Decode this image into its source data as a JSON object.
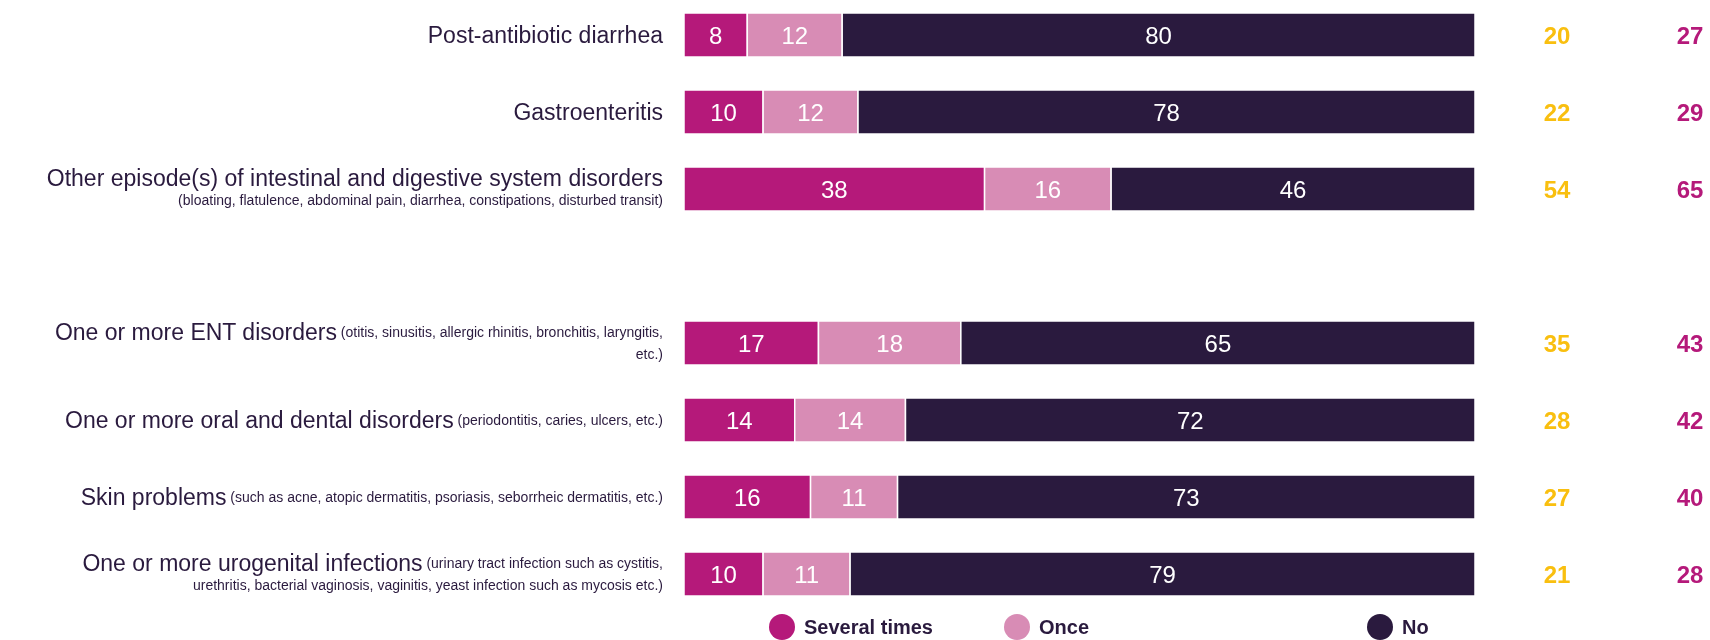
{
  "chart_data": {
    "type": "bar",
    "orientation": "horizontal",
    "stacked": true,
    "data_labels": true,
    "tick_labels": "y",
    "legend": "bottom",
    "categories": [
      "Post-antibiotic diarrhea",
      "Gastroenteritis",
      "Other episode(s) of intestinal and digestive system disorders (bloating, flatulence, abdominal pain, diarrhea, constipations, disturbed transit)",
      null,
      "One or more ENT disorders (otitis, sinusitis, allergic rhinitis, bronchitis, laryngitis, etc.)",
      "One or more oral and dental disorders (periodontitis, caries, ulcers, etc.)",
      "Skin problems (such as acne, atopic dermatitis, psoriasis, seborrheic dermatitis, etc.)",
      "One or more urogenital infections (urinary tract infection such as cystitis, urethritis, bacterial vaginosis, vaginitis, yeast infection such as mycosis etc.)"
    ],
    "series": [
      {
        "name": "Several times",
        "color": "#b5197a",
        "values": [
          8,
          10,
          38,
          null,
          17,
          14,
          16,
          10
        ]
      },
      {
        "name": "Once",
        "color": "#d88cb5",
        "values": [
          12,
          12,
          16,
          null,
          18,
          14,
          11,
          11
        ]
      },
      {
        "name": "No",
        "color": "#2a1a3e",
        "values": [
          80,
          78,
          46,
          null,
          65,
          72,
          73,
          79
        ]
      }
    ],
    "annotations": [
      "20",
      "22",
      "54",
      "35",
      "28",
      "27",
      "21",
      "27",
      "29",
      "65",
      "43",
      "42",
      "40",
      "28"
    ]
  }
}
